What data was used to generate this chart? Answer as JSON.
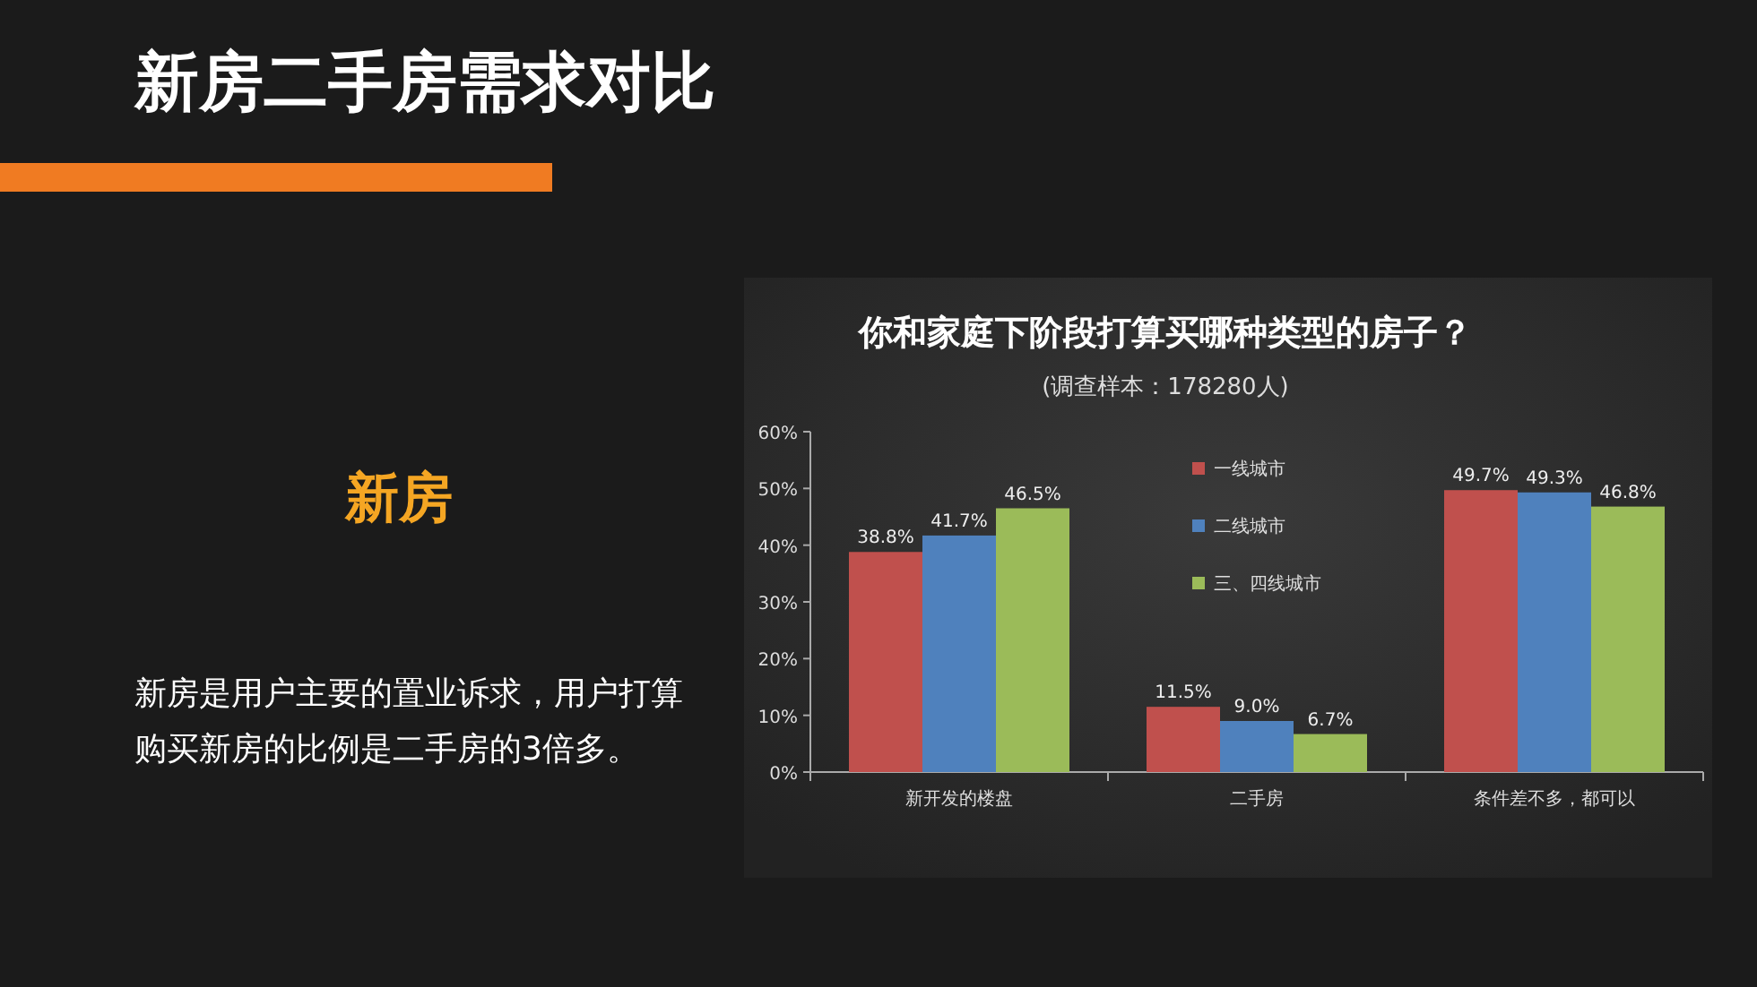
{
  "chart_data": {
    "type": "bar",
    "title": "你和家庭下阶段打算买哪种类型的房子？",
    "subtitle": "(调查样本：178280人)",
    "annotations": [
      "新房二手房需求对比",
      "新房",
      "新房是用户主要的置业诉求，用户打算购买新房的比例是二手房的3倍多。"
    ],
    "categories": [
      "新开发的楼盘",
      "二手房",
      "条件差不多，都可以"
    ],
    "series": [
      {
        "name": "一线城市",
        "color": "#c0504d",
        "values": [
          38.8,
          11.5,
          49.7
        ],
        "value_labels": [
          "38.8%",
          "11.5%",
          "49.7%"
        ]
      },
      {
        "name": "二线城市",
        "color": "#4f81bd",
        "values": [
          41.7,
          9.0,
          49.3
        ],
        "value_labels": [
          "41.7%",
          "9.0%",
          "49.3%"
        ]
      },
      {
        "name": "三、四线城市",
        "color": "#9bbb59",
        "values": [
          46.5,
          6.7,
          46.8
        ],
        "value_labels": [
          "46.5%",
          "6.7%",
          "46.8%"
        ]
      }
    ],
    "ylim": [
      0,
      60
    ],
    "yticks": [
      {
        "value": 0,
        "label": "0%"
      },
      {
        "value": 10,
        "label": "10%"
      },
      {
        "value": 20,
        "label": "20%"
      },
      {
        "value": 30,
        "label": "30%"
      },
      {
        "value": 40,
        "label": "40%"
      },
      {
        "value": 50,
        "label": "50%"
      },
      {
        "value": 60,
        "label": "60%"
      }
    ],
    "grid": false,
    "legend": "top"
  }
}
